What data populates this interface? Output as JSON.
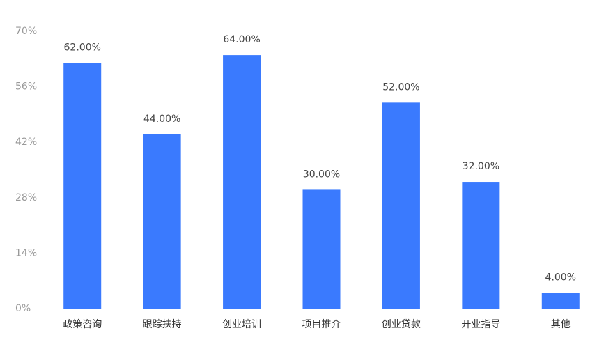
{
  "chart_data": {
    "type": "bar",
    "categories": [
      "政策咨询",
      "跟踪扶持",
      "创业培训",
      "项目推介",
      "创业贷款",
      "开业指导",
      "其他"
    ],
    "values": [
      62,
      44,
      64,
      30,
      52,
      32,
      4
    ],
    "value_labels": [
      "62.00%",
      "44.00%",
      "64.00%",
      "30.00%",
      "52.00%",
      "32.00%",
      "4.00%"
    ],
    "color": "#3a7afe",
    "ylim": [
      0,
      70
    ],
    "yticks": [
      {
        "value": 0,
        "label": "0%"
      },
      {
        "value": 14,
        "label": "14%"
      },
      {
        "value": 28,
        "label": "28%"
      },
      {
        "value": 42,
        "label": "42%"
      },
      {
        "value": 56,
        "label": "56%"
      },
      {
        "value": 70,
        "label": "70%"
      }
    ],
    "grid": false
  }
}
